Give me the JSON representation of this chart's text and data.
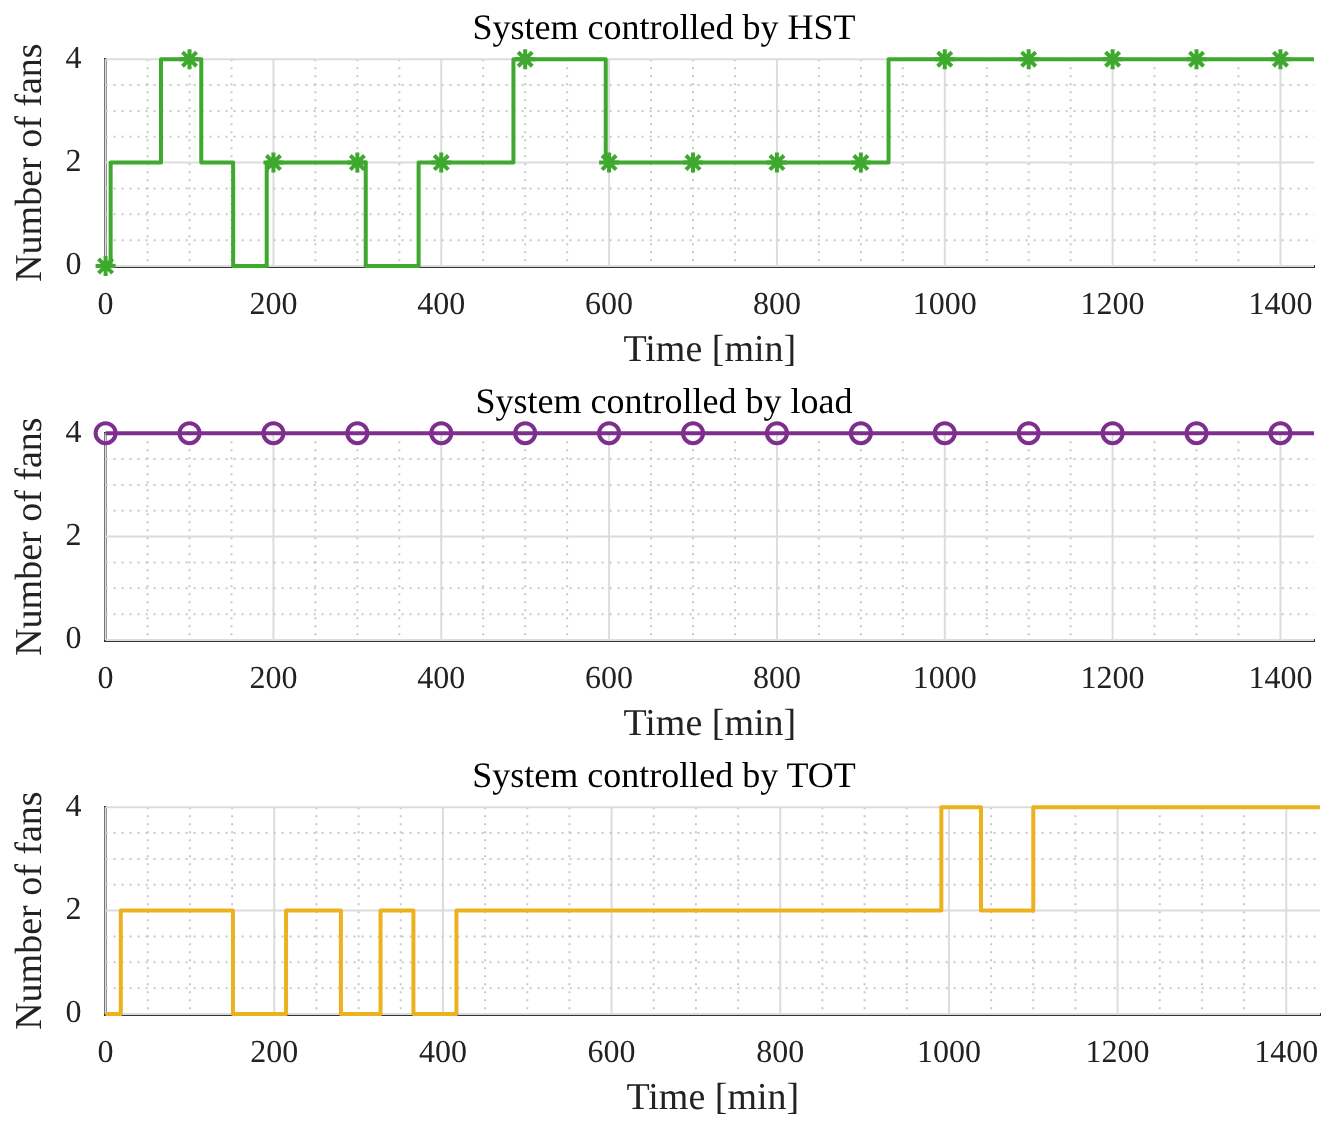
{
  "chart_data": [
    {
      "type": "step",
      "title": "System controlled by HST",
      "xlabel": "Time [min]",
      "ylabel": "Number of fans",
      "grid": true,
      "xlim": [
        0,
        1440
      ],
      "ylim": [
        0,
        4
      ],
      "xticks": [
        0,
        {
          "value": 50,
          "label": null
        },
        {
          "value": 100,
          "label": null
        },
        {
          "value": 150,
          "label": null
        },
        200,
        {
          "value": 250,
          "label": null
        },
        {
          "value": 300,
          "label": null
        },
        {
          "value": 350,
          "label": null
        },
        400,
        {
          "value": 450,
          "label": null
        },
        {
          "value": 500,
          "label": null
        },
        {
          "value": 550,
          "label": null
        },
        600,
        {
          "value": 650,
          "label": null
        },
        {
          "value": 700,
          "label": null
        },
        {
          "value": 750,
          "label": null
        },
        800,
        {
          "value": 850,
          "label": null
        },
        {
          "value": 900,
          "label": null
        },
        {
          "value": 950,
          "label": null
        },
        1000,
        {
          "value": 1050,
          "label": null
        },
        {
          "value": 1100,
          "label": null
        },
        {
          "value": 1150,
          "label": null
        },
        1200,
        {
          "value": 1250,
          "label": null
        },
        {
          "value": 1300,
          "label": null
        },
        {
          "value": 1350,
          "label": null
        },
        1400
      ],
      "yticks": [
        0,
        {
          "value": 0.5,
          "label": null
        },
        {
          "value": 1,
          "label": null
        },
        {
          "value": 1.5,
          "label": null
        },
        2,
        {
          "value": 2.5,
          "label": null
        },
        {
          "value": 3,
          "label": null
        },
        {
          "value": 3.5,
          "label": null
        },
        4
      ],
      "series": [
        {
          "color": "#3fa82f",
          "marker": "none",
          "x": [
            0,
            6,
            66,
            114,
            152,
            192,
            310,
            373,
            486,
            596,
            933,
            1440
          ],
          "values": [
            0,
            2,
            4,
            2,
            0,
            2,
            0,
            2,
            4,
            2,
            4,
            4
          ]
        },
        {
          "type": "scatter",
          "color": "#3fa82f",
          "marker": "cross",
          "x": [
            0,
            100,
            200,
            300,
            400,
            500,
            600,
            700,
            800,
            900,
            1000,
            1100,
            1200,
            1300,
            1400
          ],
          "values": [
            0,
            4,
            2,
            2,
            2,
            4,
            2,
            2,
            2,
            2,
            4,
            4,
            4,
            4,
            4
          ]
        }
      ]
    },
    {
      "type": "step",
      "title": "System controlled by load",
      "xlabel": "Time [min]",
      "ylabel": "Number of fans",
      "grid": true,
      "xlim": [
        0,
        1440
      ],
      "ylim": [
        0,
        4
      ],
      "xticks": [
        0,
        {
          "value": 50,
          "label": null
        },
        {
          "value": 100,
          "label": null
        },
        {
          "value": 150,
          "label": null
        },
        200,
        {
          "value": 250,
          "label": null
        },
        {
          "value": 300,
          "label": null
        },
        {
          "value": 350,
          "label": null
        },
        400,
        {
          "value": 450,
          "label": null
        },
        {
          "value": 500,
          "label": null
        },
        {
          "value": 550,
          "label": null
        },
        600,
        {
          "value": 650,
          "label": null
        },
        {
          "value": 700,
          "label": null
        },
        {
          "value": 750,
          "label": null
        },
        800,
        {
          "value": 850,
          "label": null
        },
        {
          "value": 900,
          "label": null
        },
        {
          "value": 950,
          "label": null
        },
        1000,
        {
          "value": 1050,
          "label": null
        },
        {
          "value": 1100,
          "label": null
        },
        {
          "value": 1150,
          "label": null
        },
        1200,
        {
          "value": 1250,
          "label": null
        },
        {
          "value": 1300,
          "label": null
        },
        {
          "value": 1350,
          "label": null
        },
        1400
      ],
      "yticks": [
        0,
        {
          "value": 0.5,
          "label": null
        },
        {
          "value": 1,
          "label": null
        },
        {
          "value": 1.5,
          "label": null
        },
        2,
        {
          "value": 2.5,
          "label": null
        },
        {
          "value": 3,
          "label": null
        },
        {
          "value": 3.5,
          "label": null
        },
        4
      ],
      "series": [
        {
          "color": "#7e2f8e",
          "marker": "none",
          "x": [
            0,
            1440
          ],
          "values": [
            4,
            4
          ]
        },
        {
          "type": "scatter",
          "color": "#7e2f8e",
          "marker": "circle",
          "x": [
            0,
            100,
            200,
            300,
            400,
            500,
            600,
            700,
            800,
            900,
            1000,
            1100,
            1200,
            1300,
            1400
          ],
          "values": [
            4,
            4,
            4,
            4,
            4,
            4,
            4,
            4,
            4,
            4,
            4,
            4,
            4,
            4,
            4
          ]
        }
      ]
    },
    {
      "type": "step",
      "title": "System controlled by TOT",
      "xlabel": "Time [min]",
      "ylabel": "Number of fans",
      "grid": true,
      "xlim": [
        0,
        1440
      ],
      "ylim": [
        0,
        4
      ],
      "xticks": [
        0,
        {
          "value": 50,
          "label": null
        },
        {
          "value": 100,
          "label": null
        },
        {
          "value": 150,
          "label": null
        },
        200,
        {
          "value": 250,
          "label": null
        },
        {
          "value": 300,
          "label": null
        },
        {
          "value": 350,
          "label": null
        },
        400,
        {
          "value": 450,
          "label": null
        },
        {
          "value": 500,
          "label": null
        },
        {
          "value": 550,
          "label": null
        },
        600,
        {
          "value": 650,
          "label": null
        },
        {
          "value": 700,
          "label": null
        },
        {
          "value": 750,
          "label": null
        },
        800,
        {
          "value": 850,
          "label": null
        },
        {
          "value": 900,
          "label": null
        },
        {
          "value": 950,
          "label": null
        },
        1000,
        {
          "value": 1050,
          "label": null
        },
        {
          "value": 1100,
          "label": null
        },
        {
          "value": 1150,
          "label": null
        },
        1200,
        {
          "value": 1250,
          "label": null
        },
        {
          "value": 1300,
          "label": null
        },
        {
          "value": 1350,
          "label": null
        },
        1400
      ],
      "yticks": [
        0,
        {
          "value": 0.5,
          "label": null
        },
        {
          "value": 1,
          "label": null
        },
        {
          "value": 1.5,
          "label": null
        },
        2,
        {
          "value": 2.5,
          "label": null
        },
        {
          "value": 3,
          "label": null
        },
        {
          "value": 3.5,
          "label": null
        },
        4
      ],
      "series": [
        {
          "color": "#edb120",
          "marker": "none",
          "x": [
            0,
            18,
            151,
            214,
            279,
            326,
            365,
            416,
            991,
            1038,
            1100,
            1440
          ],
          "values": [
            0,
            2,
            0,
            2,
            0,
            2,
            0,
            2,
            4,
            2,
            4,
            4
          ]
        }
      ]
    }
  ]
}
